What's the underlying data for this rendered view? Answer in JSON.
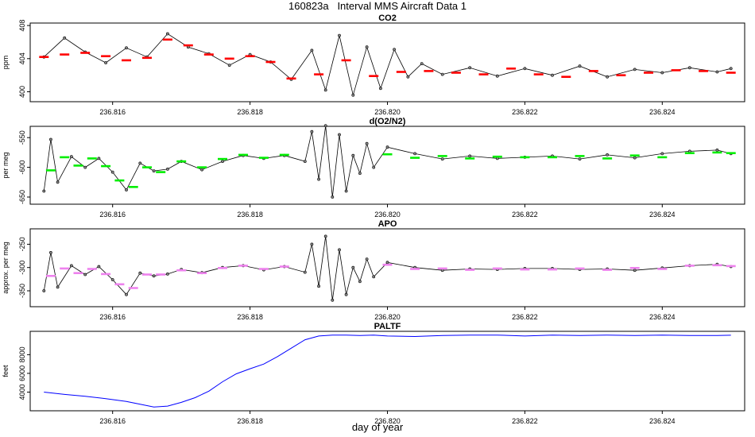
{
  "page": {
    "title": "160823a   Interval MMS Aircraft Data 1",
    "xlabel": "day of year"
  },
  "chart_data": [
    {
      "type": "line",
      "title": "CO2",
      "ylabel": "ppm",
      "xlim": [
        236.8148,
        236.8252
      ],
      "ylim": [
        398.8,
        408.3
      ],
      "yticks": [
        400,
        404,
        408
      ],
      "xticks": [
        236.816,
        236.818,
        236.82,
        236.822,
        236.824
      ],
      "xtick_labels": [
        "236.816",
        "236.818",
        "236.820",
        "236.822",
        "236.824"
      ],
      "colors": {
        "raw": "#000000",
        "avg": "#ff0000"
      },
      "raw": {
        "x": [
          236.815,
          236.8153,
          236.8156,
          236.8159,
          236.8162,
          236.8165,
          236.8168,
          236.8171,
          236.8174,
          236.8177,
          236.818,
          236.8183,
          236.8186,
          236.8189,
          236.8191,
          236.8193,
          236.8195,
          236.8197,
          236.8199,
          236.8201,
          236.8203,
          236.8205,
          236.8208,
          236.8212,
          236.8216,
          236.822,
          236.8224,
          236.8228,
          236.8232,
          236.8236,
          236.824,
          236.8244,
          236.8248,
          236.825
        ],
        "values": [
          404.2,
          406.5,
          404.8,
          403.5,
          405.3,
          404.2,
          407.0,
          405.4,
          404.6,
          403.2,
          404.5,
          403.6,
          401.5,
          405.0,
          400.2,
          406.8,
          399.6,
          405.4,
          400.4,
          405.1,
          401.8,
          403.4,
          402.1,
          402.9,
          401.9,
          402.8,
          402.0,
          403.1,
          401.8,
          402.7,
          402.3,
          402.9,
          402.4,
          402.8
        ]
      },
      "avg": {
        "x": [
          236.815,
          236.8153,
          236.8156,
          236.8159,
          236.8162,
          236.8165,
          236.8168,
          236.8171,
          236.8174,
          236.8177,
          236.818,
          236.8183,
          236.8186,
          236.819,
          236.8194,
          236.8198,
          236.8202,
          236.8206,
          236.821,
          236.8214,
          236.8218,
          236.8222,
          236.8226,
          236.823,
          236.8234,
          236.8238,
          236.8242,
          236.8246,
          236.825
        ],
        "values": [
          404.2,
          404.5,
          404.7,
          404.3,
          403.8,
          404.1,
          406.3,
          405.6,
          404.5,
          404.0,
          404.3,
          403.6,
          401.6,
          402.1,
          403.8,
          401.9,
          402.4,
          402.5,
          402.3,
          402.1,
          402.8,
          402.1,
          401.8,
          402.5,
          402.0,
          402.3,
          402.6,
          402.5,
          402.3
        ]
      }
    },
    {
      "type": "line",
      "title": "d(O2/N2)",
      "ylabel": "per meg",
      "xlim": [
        236.8148,
        236.8252
      ],
      "ylim": [
        -662,
        -531
      ],
      "yticks": [
        -550,
        -600,
        -650
      ],
      "xticks": [
        236.816,
        236.818,
        236.82,
        236.822,
        236.824
      ],
      "xtick_labels": [
        "236.816",
        "236.818",
        "236.820",
        "236.822",
        "236.824"
      ],
      "colors": {
        "raw": "#000000",
        "avg": "#00ee00"
      },
      "raw": {
        "x": [
          236.815,
          236.8151,
          236.8152,
          236.8154,
          236.8156,
          236.8158,
          236.816,
          236.8162,
          236.8164,
          236.8166,
          236.8168,
          236.817,
          236.8173,
          236.8176,
          236.8179,
          236.8182,
          236.8185,
          236.8188,
          236.8189,
          236.819,
          236.8191,
          236.8192,
          236.8193,
          236.8194,
          236.8195,
          236.8196,
          236.8197,
          236.8198,
          236.82,
          236.8204,
          236.8208,
          236.8212,
          236.8216,
          236.822,
          236.8224,
          236.8228,
          236.8232,
          236.8236,
          236.824,
          236.8244,
          236.8248,
          236.825
        ],
        "values": [
          -640,
          -553,
          -625,
          -582,
          -600,
          -585,
          -608,
          -638,
          -593,
          -606,
          -603,
          -590,
          -604,
          -590,
          -580,
          -585,
          -580,
          -590,
          -540,
          -620,
          -530,
          -650,
          -545,
          -640,
          -580,
          -610,
          -560,
          -600,
          -566,
          -577,
          -586,
          -581,
          -585,
          -583,
          -581,
          -586,
          -579,
          -584,
          -577,
          -573,
          -571,
          -577
        ]
      },
      "avg": {
        "x": [
          236.8151,
          236.8153,
          236.8155,
          236.8157,
          236.8159,
          236.8161,
          236.8163,
          236.8165,
          236.8167,
          236.817,
          236.8173,
          236.8176,
          236.8179,
          236.8182,
          236.8185,
          236.82,
          236.8204,
          236.8208,
          236.8212,
          236.8216,
          236.822,
          236.8224,
          236.8228,
          236.8232,
          236.8236,
          236.824,
          236.8244,
          236.8248,
          236.825
        ],
        "values": [
          -605,
          -583,
          -597,
          -585,
          -598,
          -622,
          -633,
          -600,
          -608,
          -590,
          -600,
          -586,
          -579,
          -584,
          -579,
          -578,
          -584,
          -581,
          -585,
          -582,
          -583,
          -583,
          -581,
          -585,
          -580,
          -583,
          -576,
          -575,
          -576
        ]
      }
    },
    {
      "type": "line",
      "title": "APO",
      "ylabel": "approx. per meg",
      "xlim": [
        236.8148,
        236.8252
      ],
      "ylim": [
        -384,
        -217
      ],
      "yticks": [
        -250,
        -300,
        -350
      ],
      "xticks": [
        236.816,
        236.818,
        236.82,
        236.822,
        236.824
      ],
      "xtick_labels": [
        "236.816",
        "236.818",
        "236.820",
        "236.822",
        "236.824"
      ],
      "colors": {
        "raw": "#000000",
        "avg": "#ee82ee"
      },
      "raw": {
        "x": [
          236.815,
          236.8151,
          236.8152,
          236.8154,
          236.8156,
          236.8158,
          236.816,
          236.8162,
          236.8164,
          236.8166,
          236.8168,
          236.817,
          236.8173,
          236.8176,
          236.8179,
          236.8182,
          236.8185,
          236.8188,
          236.8189,
          236.819,
          236.8191,
          236.8192,
          236.8193,
          236.8194,
          236.8195,
          236.8196,
          236.8197,
          236.8198,
          236.82,
          236.8204,
          236.8208,
          236.8212,
          236.8216,
          236.822,
          236.8224,
          236.8228,
          236.8232,
          236.8236,
          236.824,
          236.8244,
          236.8248,
          236.825
        ],
        "values": [
          -350,
          -268,
          -342,
          -296,
          -315,
          -298,
          -326,
          -358,
          -312,
          -318,
          -314,
          -304,
          -311,
          -300,
          -296,
          -305,
          -298,
          -310,
          -250,
          -340,
          -233,
          -370,
          -262,
          -358,
          -300,
          -330,
          -282,
          -320,
          -289,
          -300,
          -306,
          -303,
          -304,
          -302,
          -302,
          -304,
          -303,
          -306,
          -301,
          -296,
          -293,
          -298
        ]
      },
      "avg": {
        "x": [
          236.8151,
          236.8153,
          236.8155,
          236.8157,
          236.8159,
          236.8161,
          236.8163,
          236.8165,
          236.8167,
          236.817,
          236.8173,
          236.8176,
          236.8179,
          236.8182,
          236.8185,
          236.82,
          236.8204,
          236.8208,
          236.8212,
          236.8216,
          236.822,
          236.8224,
          236.8228,
          236.8232,
          236.8236,
          236.824,
          236.8244,
          236.8248,
          236.825
        ],
        "values": [
          -318,
          -302,
          -312,
          -303,
          -314,
          -336,
          -344,
          -315,
          -315,
          -306,
          -312,
          -301,
          -296,
          -303,
          -298,
          -294,
          -303,
          -302,
          -305,
          -302,
          -304,
          -304,
          -302,
          -305,
          -301,
          -303,
          -296,
          -295,
          -297
        ]
      }
    },
    {
      "type": "line",
      "title": "PALTF",
      "ylabel": "feet",
      "xlim": [
        236.8148,
        236.8252
      ],
      "ylim": [
        2000,
        10500
      ],
      "yticks": [
        4000,
        6000,
        8000
      ],
      "xticks": [
        236.816,
        236.818,
        236.82,
        236.822,
        236.824
      ],
      "xtick_labels": [
        "236.816",
        "236.818",
        "236.820",
        "236.822",
        "236.824"
      ],
      "colors": {
        "line": "#0000ff"
      },
      "x": [
        236.815,
        236.8153,
        236.8156,
        236.8159,
        236.8162,
        236.8164,
        236.8166,
        236.8168,
        236.817,
        236.8172,
        236.8174,
        236.8176,
        236.8178,
        236.818,
        236.8182,
        236.8184,
        236.8186,
        236.8188,
        236.819,
        236.8192,
        236.8194,
        236.8196,
        236.8198,
        236.82,
        236.8204,
        236.8208,
        236.8212,
        236.8216,
        236.822,
        236.8224,
        236.8228,
        236.8232,
        236.8236,
        236.824,
        236.8244,
        236.8248,
        236.825
      ],
      "values": [
        4000,
        3750,
        3550,
        3300,
        3000,
        2700,
        2400,
        2500,
        2900,
        3400,
        4100,
        5100,
        5950,
        6500,
        7000,
        7800,
        8700,
        9600,
        10000,
        10100,
        10100,
        10050,
        10100,
        10000,
        9950,
        10050,
        10100,
        10100,
        10000,
        10100,
        10050,
        10100,
        10050,
        10100,
        10050,
        10050,
        10080
      ]
    }
  ]
}
